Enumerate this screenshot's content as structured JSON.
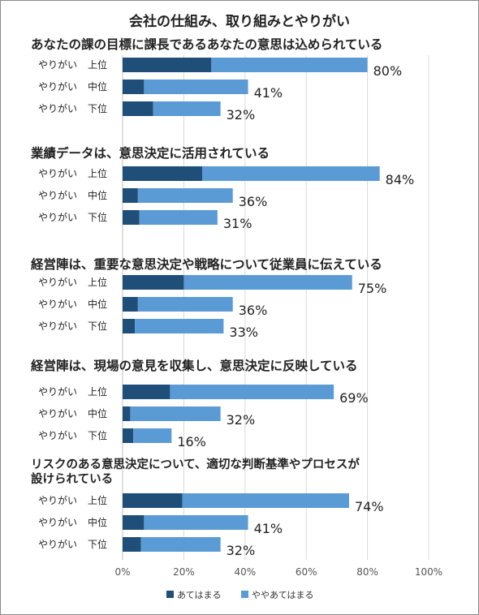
{
  "chart_data": {
    "type": "bar",
    "stacked": true,
    "orientation": "horizontal",
    "title": "会社の仕組み、取り組みとやりがい",
    "row_labels": [
      [
        "やりがい",
        "上位"
      ],
      [
        "やりがい",
        "中位"
      ],
      [
        "やりがい",
        "下位"
      ]
    ],
    "series": [
      {
        "name": "あてはまる",
        "color": "#1f4e79"
      },
      {
        "name": "ややあてはまる",
        "color": "#5b9bd5"
      }
    ],
    "groups": [
      {
        "title_lines": [
          "あなたの課の目標に課長であるあなたの意思は込められている"
        ],
        "rows": [
          {
            "dark": 29,
            "light": 51,
            "total": 80,
            "label": "80%"
          },
          {
            "dark": 7,
            "light": 34,
            "total": 41,
            "label": "41%"
          },
          {
            "dark": 10,
            "light": 22,
            "total": 32,
            "label": "32%"
          }
        ]
      },
      {
        "title_lines": [
          "業績データは、意思決定に活用されている"
        ],
        "rows": [
          {
            "dark": 26,
            "light": 58,
            "total": 84,
            "label": "84%"
          },
          {
            "dark": 5,
            "light": 31,
            "total": 36,
            "label": "36%"
          },
          {
            "dark": 5.5,
            "light": 25.5,
            "total": 31,
            "label": "31%"
          }
        ]
      },
      {
        "title_lines": [
          "経営陣は、重要な意思決定や戦略について従業員に伝えている"
        ],
        "rows": [
          {
            "dark": 20,
            "light": 55,
            "total": 75,
            "label": "75%"
          },
          {
            "dark": 5,
            "light": 31,
            "total": 36,
            "label": "36%"
          },
          {
            "dark": 4,
            "light": 29,
            "total": 33,
            "label": "33%"
          }
        ]
      },
      {
        "title_lines": [
          "経営陣は、現場の意見を収集し、意思決定に反映している"
        ],
        "rows": [
          {
            "dark": 15.5,
            "light": 53.5,
            "total": 69,
            "label": "69%"
          },
          {
            "dark": 2.5,
            "light": 29.5,
            "total": 32,
            "label": "32%"
          },
          {
            "dark": 3.5,
            "light": 12.5,
            "total": 16,
            "label": "16%"
          }
        ]
      },
      {
        "title_lines": [
          "リスクのある意思決定について、適切な判断基準やプロセスが",
          "設けられている"
        ],
        "rows": [
          {
            "dark": 19.5,
            "light": 54.5,
            "total": 74,
            "label": "74%"
          },
          {
            "dark": 7,
            "light": 34,
            "total": 41,
            "label": "41%"
          },
          {
            "dark": 6,
            "light": 26,
            "total": 32,
            "label": "32%"
          }
        ]
      }
    ],
    "x_ticks": [
      "0%",
      "20%",
      "40%",
      "60%",
      "80%",
      "100%"
    ],
    "xlim": [
      0,
      100
    ],
    "grid": true,
    "legend": "bottom-center"
  }
}
